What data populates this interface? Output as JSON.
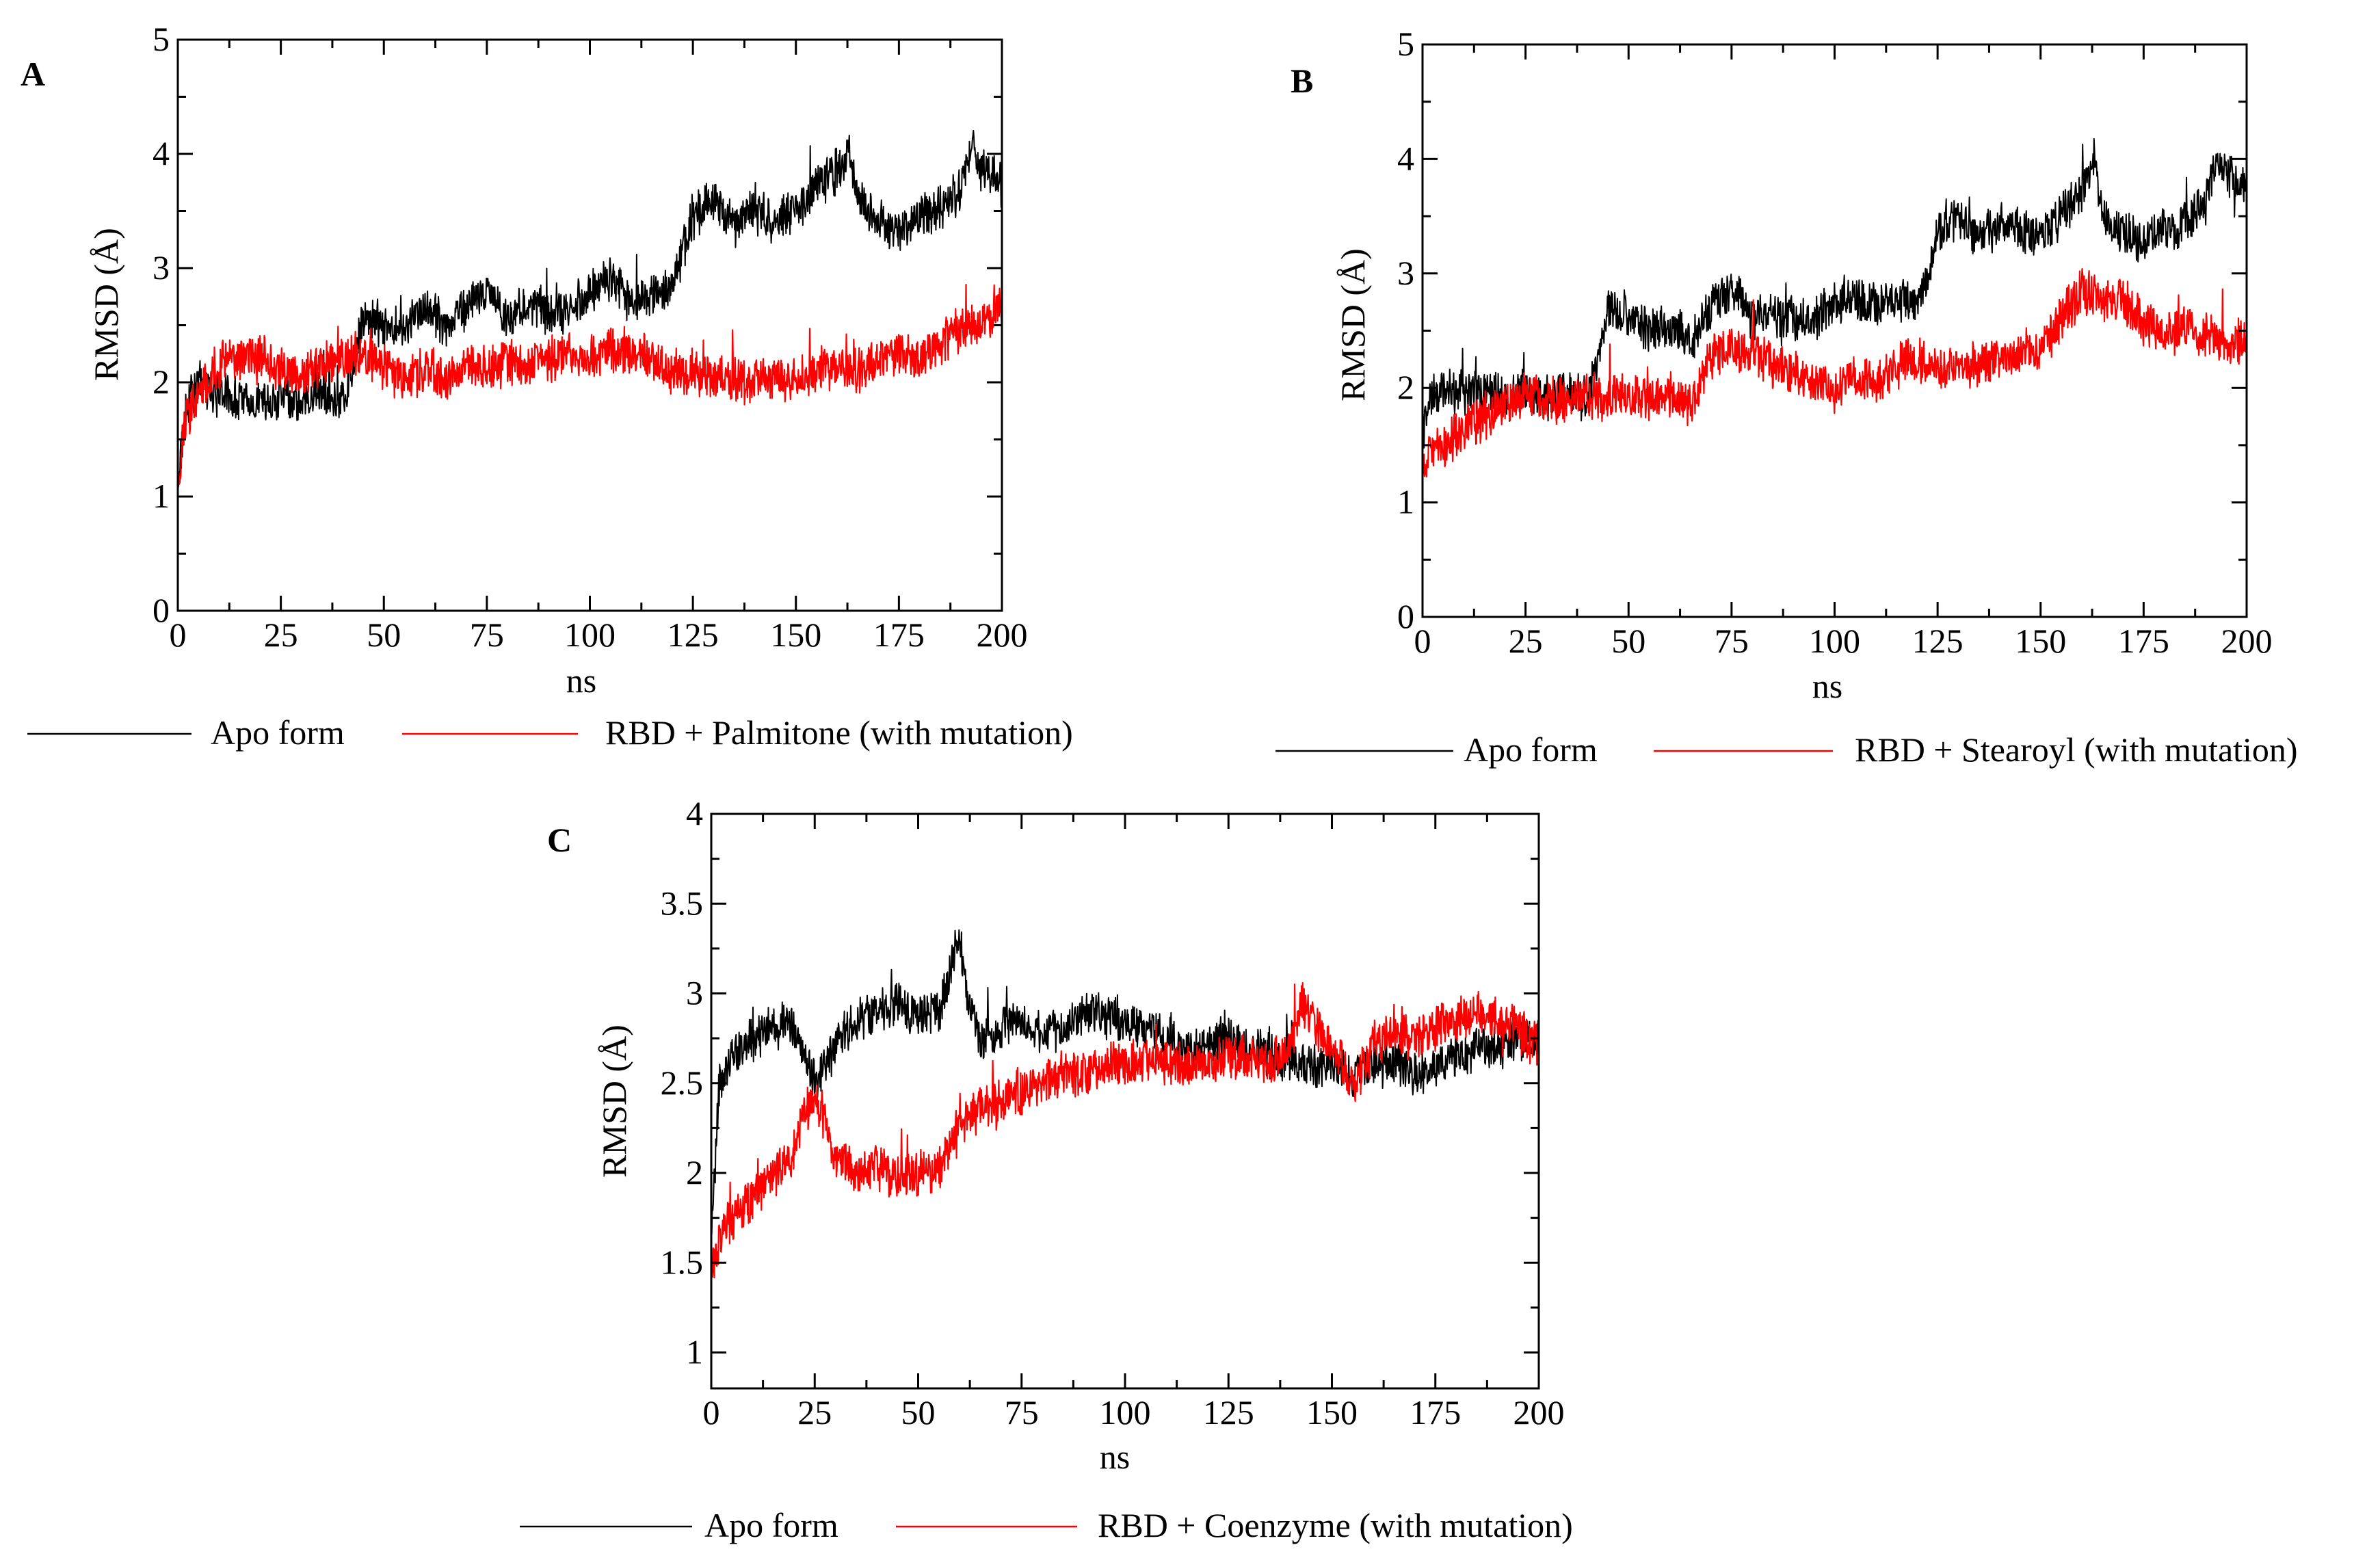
{
  "figure": {
    "background": "#ffffff",
    "axis_color": "#000000"
  },
  "chart_data": [
    {
      "panel": "A",
      "type": "line",
      "xlabel": "ns",
      "ylabel": "RMSD (Å)",
      "xlim": [
        0,
        200
      ],
      "ylim": [
        0,
        5
      ],
      "xticks": [
        0,
        25,
        50,
        75,
        100,
        125,
        150,
        175,
        200
      ],
      "yticks": [
        0,
        1,
        2,
        3,
        4,
        5
      ],
      "xtick_labels": [
        "0",
        "25",
        "50",
        "75",
        "100",
        "125",
        "150",
        "175",
        "200"
      ],
      "ytick_labels": [
        "0",
        "1",
        "2",
        "3",
        "4",
        "5"
      ],
      "legend": [
        "Apo form",
        "RBD + Palmitone (with mutation)"
      ],
      "legend_position": "bottom",
      "series": [
        {
          "name": "Apo form",
          "color": "#000000",
          "x": [
            0,
            2,
            5,
            10,
            15,
            20,
            25,
            30,
            35,
            40,
            43,
            45,
            50,
            55,
            60,
            65,
            70,
            75,
            80,
            85,
            90,
            95,
            100,
            105,
            110,
            115,
            120,
            123,
            125,
            130,
            135,
            140,
            145,
            150,
            155,
            160,
            163,
            165,
            170,
            175,
            180,
            185,
            190,
            193,
            195,
            200
          ],
          "y": [
            1.1,
            1.8,
            2.0,
            1.9,
            1.85,
            1.8,
            1.9,
            1.85,
            1.9,
            1.8,
            2.2,
            2.6,
            2.5,
            2.45,
            2.7,
            2.5,
            2.65,
            2.8,
            2.55,
            2.7,
            2.6,
            2.65,
            2.8,
            2.9,
            2.7,
            2.8,
            2.85,
            3.2,
            3.45,
            3.6,
            3.35,
            3.55,
            3.4,
            3.5,
            3.7,
            3.85,
            4.05,
            3.6,
            3.4,
            3.3,
            3.45,
            3.5,
            3.7,
            4.1,
            3.85,
            3.8
          ]
        },
        {
          "name": "RBD + Palmitone (with mutation)",
          "color": "#ff0000",
          "x": [
            0,
            2,
            5,
            10,
            15,
            20,
            25,
            30,
            35,
            40,
            45,
            50,
            55,
            60,
            65,
            70,
            75,
            80,
            85,
            90,
            95,
            100,
            105,
            110,
            115,
            120,
            125,
            130,
            135,
            140,
            145,
            150,
            155,
            160,
            165,
            170,
            175,
            180,
            185,
            190,
            195,
            200
          ],
          "y": [
            1.1,
            1.7,
            1.9,
            2.15,
            2.2,
            2.25,
            2.1,
            2.05,
            2.15,
            2.2,
            2.25,
            2.15,
            2.0,
            2.1,
            2.0,
            2.15,
            2.1,
            2.2,
            2.15,
            2.2,
            2.25,
            2.2,
            2.3,
            2.25,
            2.2,
            2.1,
            2.1,
            2.05,
            2.0,
            2.0,
            2.05,
            2.0,
            2.1,
            2.15,
            2.1,
            2.2,
            2.25,
            2.2,
            2.35,
            2.45,
            2.5,
            2.65
          ]
        }
      ]
    },
    {
      "panel": "B",
      "type": "line",
      "xlabel": "ns",
      "ylabel": "RMSD (Å)",
      "xlim": [
        0,
        200
      ],
      "ylim": [
        0,
        5
      ],
      "xticks": [
        0,
        25,
        50,
        75,
        100,
        125,
        150,
        175,
        200
      ],
      "yticks": [
        0,
        1,
        2,
        3,
        4,
        5
      ],
      "xtick_labels": [
        "0",
        "25",
        "50",
        "75",
        "100",
        "125",
        "150",
        "175",
        "200"
      ],
      "ytick_labels": [
        "0",
        "1",
        "2",
        "3",
        "4",
        "5"
      ],
      "legend": [
        "Apo form",
        "RBD + Stearoyl (with mutation)"
      ],
      "legend_position": "bottom",
      "series": [
        {
          "name": "Apo form",
          "color": "#000000",
          "x": [
            0,
            2,
            5,
            10,
            15,
            20,
            25,
            30,
            35,
            40,
            43,
            45,
            50,
            55,
            60,
            65,
            70,
            75,
            80,
            85,
            90,
            95,
            100,
            105,
            110,
            115,
            120,
            123,
            125,
            130,
            135,
            140,
            145,
            150,
            155,
            160,
            163,
            165,
            170,
            175,
            180,
            185,
            190,
            193,
            195,
            200
          ],
          "y": [
            1.6,
            1.9,
            2.0,
            1.95,
            2.0,
            1.9,
            2.0,
            1.9,
            1.95,
            1.9,
            2.3,
            2.7,
            2.6,
            2.5,
            2.55,
            2.4,
            2.7,
            2.9,
            2.6,
            2.65,
            2.6,
            2.6,
            2.75,
            2.8,
            2.7,
            2.8,
            2.75,
            3.0,
            3.35,
            3.5,
            3.3,
            3.45,
            3.4,
            3.3,
            3.5,
            3.7,
            4.0,
            3.55,
            3.35,
            3.3,
            3.4,
            3.45,
            3.6,
            4.05,
            3.85,
            3.75
          ]
        },
        {
          "name": "RBD + Stearoyl (with mutation)",
          "color": "#ff0000",
          "x": [
            0,
            2,
            5,
            10,
            15,
            20,
            25,
            30,
            35,
            40,
            45,
            50,
            55,
            60,
            65,
            70,
            75,
            80,
            85,
            90,
            95,
            100,
            105,
            110,
            115,
            120,
            125,
            130,
            135,
            140,
            145,
            150,
            155,
            160,
            165,
            170,
            175,
            180,
            185,
            190,
            195,
            200
          ],
          "y": [
            1.3,
            1.45,
            1.5,
            1.65,
            1.75,
            1.85,
            1.95,
            1.9,
            1.9,
            1.95,
            1.9,
            1.95,
            1.9,
            1.95,
            1.85,
            2.25,
            2.35,
            2.3,
            2.2,
            2.15,
            2.05,
            2.0,
            2.1,
            2.05,
            2.2,
            2.25,
            2.2,
            2.2,
            2.2,
            2.25,
            2.3,
            2.35,
            2.6,
            2.85,
            2.75,
            2.8,
            2.55,
            2.5,
            2.5,
            2.45,
            2.4,
            2.4
          ]
        }
      ]
    },
    {
      "panel": "C",
      "type": "line",
      "xlabel": "ns",
      "ylabel": "RMSD (Å)",
      "xlim": [
        0,
        200
      ],
      "ylim": [
        0.8,
        4
      ],
      "xticks": [
        0,
        25,
        50,
        75,
        100,
        125,
        150,
        175,
        200
      ],
      "yticks": [
        1,
        1.5,
        2,
        2.5,
        3,
        3.5,
        4
      ],
      "xtick_labels": [
        "0",
        "25",
        "50",
        "75",
        "100",
        "125",
        "150",
        "175",
        "200"
      ],
      "ytick_labels": [
        "1",
        "1.5",
        "2",
        "2.5",
        "3",
        "3.5",
        "4"
      ],
      "legend": [
        "Apo form",
        "RBD + Coenzyme (with mutation)"
      ],
      "legend_position": "bottom",
      "series": [
        {
          "name": "Apo form",
          "color": "#000000",
          "x": [
            0,
            2,
            5,
            10,
            15,
            20,
            25,
            30,
            35,
            40,
            45,
            50,
            55,
            60,
            62,
            65,
            70,
            75,
            80,
            85,
            90,
            95,
            100,
            105,
            110,
            115,
            120,
            125,
            130,
            135,
            140,
            145,
            150,
            155,
            160,
            165,
            170,
            175,
            180,
            185,
            190,
            195,
            200
          ],
          "y": [
            1.6,
            2.5,
            2.65,
            2.75,
            2.8,
            2.85,
            2.5,
            2.7,
            2.85,
            2.9,
            2.95,
            2.85,
            2.9,
            3.3,
            2.95,
            2.75,
            2.8,
            2.85,
            2.8,
            2.8,
            2.9,
            2.85,
            2.85,
            2.8,
            2.75,
            2.7,
            2.7,
            2.75,
            2.7,
            2.65,
            2.65,
            2.6,
            2.6,
            2.55,
            2.6,
            2.6,
            2.55,
            2.6,
            2.65,
            2.7,
            2.7,
            2.75,
            2.75
          ]
        },
        {
          "name": "RBD + Coenzyme (with mutation)",
          "color": "#ff0000",
          "x": [
            0,
            2,
            5,
            10,
            15,
            20,
            22,
            25,
            30,
            35,
            40,
            45,
            50,
            55,
            58,
            60,
            65,
            70,
            75,
            80,
            85,
            90,
            95,
            100,
            105,
            110,
            115,
            120,
            125,
            130,
            135,
            140,
            143,
            145,
            150,
            155,
            160,
            165,
            170,
            175,
            180,
            185,
            190,
            195,
            200
          ],
          "y": [
            1.45,
            1.65,
            1.75,
            1.85,
            2.0,
            2.1,
            2.3,
            2.45,
            2.1,
            2.0,
            2.05,
            1.95,
            2.0,
            2.0,
            2.15,
            2.25,
            2.35,
            2.4,
            2.45,
            2.5,
            2.55,
            2.55,
            2.6,
            2.6,
            2.65,
            2.6,
            2.6,
            2.6,
            2.65,
            2.65,
            2.6,
            2.7,
            2.95,
            2.85,
            2.7,
            2.5,
            2.7,
            2.8,
            2.75,
            2.8,
            2.85,
            2.9,
            2.85,
            2.8,
            2.7
          ]
        }
      ]
    }
  ]
}
